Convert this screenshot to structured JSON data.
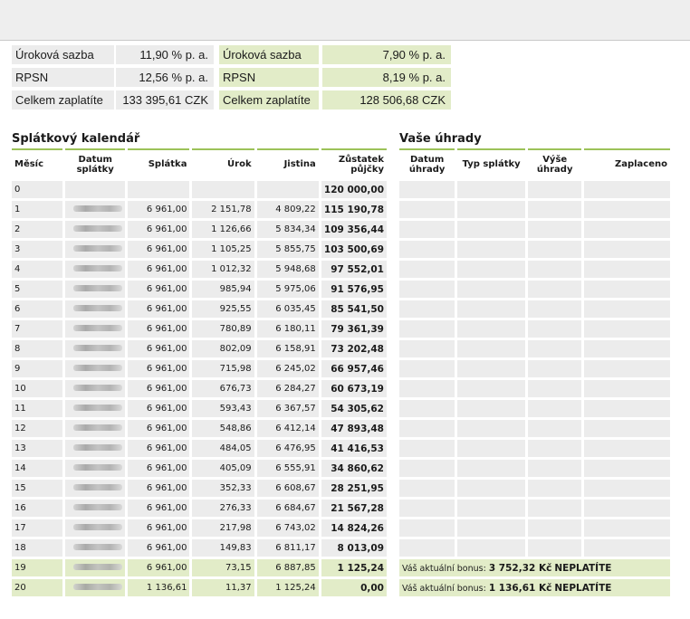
{
  "summary": {
    "left": [
      {
        "label": "Úroková sazba",
        "value": "11,90 % p. a."
      },
      {
        "label": "RPSN",
        "value": "12,56 % p. a."
      },
      {
        "label": "Celkem zaplatíte",
        "value": "133 395,61 CZK"
      }
    ],
    "right": [
      {
        "label": "Úroková sazba",
        "value": "7,90  % p. a."
      },
      {
        "label": "RPSN",
        "value": "8,19  % p. a."
      },
      {
        "label": "Celkem zaplatíte",
        "value": "128 506,68 CZK"
      }
    ]
  },
  "schedule": {
    "title": "Splátkový kalendář",
    "headers": {
      "mesic": "Měsíc",
      "datum": "Datum splátky",
      "splatka": "Splátka",
      "urok": "Úrok",
      "jistina": "Jistina",
      "zustatek": "Zůstatek půjčky"
    },
    "rows": [
      {
        "m": "0",
        "s": "",
        "u": "",
        "j": "",
        "z": "120 000,00"
      },
      {
        "m": "1",
        "s": "6 961,00",
        "u": "2 151,78",
        "j": "4 809,22",
        "z": "115 190,78"
      },
      {
        "m": "2",
        "s": "6 961,00",
        "u": "1 126,66",
        "j": "5 834,34",
        "z": "109 356,44"
      },
      {
        "m": "3",
        "s": "6 961,00",
        "u": "1 105,25",
        "j": "5 855,75",
        "z": "103 500,69"
      },
      {
        "m": "4",
        "s": "6 961,00",
        "u": "1 012,32",
        "j": "5 948,68",
        "z": "97 552,01"
      },
      {
        "m": "5",
        "s": "6 961,00",
        "u": "985,94",
        "j": "5 975,06",
        "z": "91 576,95"
      },
      {
        "m": "6",
        "s": "6 961,00",
        "u": "925,55",
        "j": "6 035,45",
        "z": "85 541,50"
      },
      {
        "m": "7",
        "s": "6 961,00",
        "u": "780,89",
        "j": "6 180,11",
        "z": "79 361,39"
      },
      {
        "m": "8",
        "s": "6 961,00",
        "u": "802,09",
        "j": "6 158,91",
        "z": "73 202,48"
      },
      {
        "m": "9",
        "s": "6 961,00",
        "u": "715,98",
        "j": "6 245,02",
        "z": "66 957,46"
      },
      {
        "m": "10",
        "s": "6 961,00",
        "u": "676,73",
        "j": "6 284,27",
        "z": "60 673,19"
      },
      {
        "m": "11",
        "s": "6 961,00",
        "u": "593,43",
        "j": "6 367,57",
        "z": "54 305,62"
      },
      {
        "m": "12",
        "s": "6 961,00",
        "u": "548,86",
        "j": "6 412,14",
        "z": "47 893,48"
      },
      {
        "m": "13",
        "s": "6 961,00",
        "u": "484,05",
        "j": "6 476,95",
        "z": "41 416,53"
      },
      {
        "m": "14",
        "s": "6 961,00",
        "u": "405,09",
        "j": "6 555,91",
        "z": "34 860,62"
      },
      {
        "m": "15",
        "s": "6 961,00",
        "u": "352,33",
        "j": "6 608,67",
        "z": "28 251,95"
      },
      {
        "m": "16",
        "s": "6 961,00",
        "u": "276,33",
        "j": "6 684,67",
        "z": "21 567,28"
      },
      {
        "m": "17",
        "s": "6 961,00",
        "u": "217,98",
        "j": "6 743,02",
        "z": "14 824,26"
      },
      {
        "m": "18",
        "s": "6 961,00",
        "u": "149,83",
        "j": "6 811,17",
        "z": "8 013,09"
      },
      {
        "m": "19",
        "s": "6 961,00",
        "u": "73,15",
        "j": "6 887,85",
        "z": "1 125,24"
      },
      {
        "m": "20",
        "s": "1 136,61",
        "u": "11,37",
        "j": "1 125,24",
        "z": "0,00"
      }
    ]
  },
  "payments": {
    "title": "Vaše úhrady",
    "headers": {
      "datum": "Datum úhrady",
      "typ": "Typ splátky",
      "vyse": "Výše úhrady",
      "zaplaceno": "Zaplaceno"
    },
    "bonus": [
      {
        "prefix": "Váš aktuální bonus:",
        "amount": "3 752,32 Kč",
        "status": "NEPLATÍTE"
      },
      {
        "prefix": "Váš aktuální bonus:",
        "amount": "1 136,61 Kč",
        "status": "NEPLATÍTE"
      }
    ]
  },
  "colors": {
    "accent_light": "#e2ecc8",
    "accent_line": "#9cc259",
    "cell_grey": "#ececec"
  }
}
